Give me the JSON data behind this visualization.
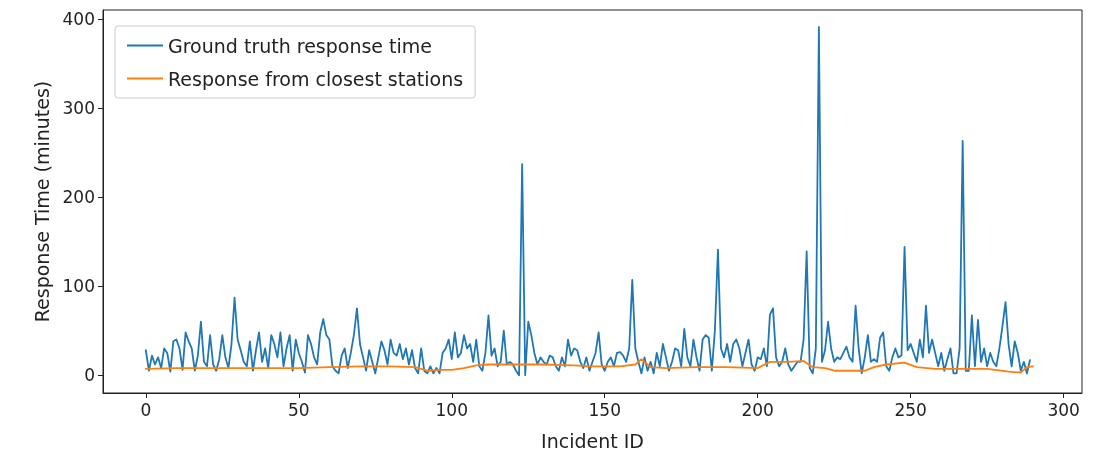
{
  "chart_data": {
    "type": "line",
    "xlabel": "Incident ID",
    "ylabel": "Response Time (minutes)",
    "xlim": [
      -14,
      306
    ],
    "xticks": [
      0,
      50,
      100,
      150,
      200,
      250,
      300
    ],
    "ylim": [
      -20,
      410
    ],
    "yticks": [
      0,
      100,
      200,
      300,
      400
    ],
    "grid": false,
    "legend": "top left",
    "marker": "none",
    "line_style": "solid",
    "series": [
      {
        "name": "Ground truth response time",
        "color": "#1f77b4",
        "x": [
          0,
          1,
          2,
          3,
          4,
          5,
          6,
          7,
          8,
          9,
          10,
          11,
          12,
          13,
          14,
          15,
          16,
          17,
          18,
          19,
          20,
          21,
          22,
          23,
          24,
          25,
          26,
          27,
          28,
          29,
          30,
          31,
          32,
          33,
          34,
          35,
          36,
          37,
          38,
          39,
          40,
          41,
          42,
          43,
          44,
          45,
          46,
          47,
          48,
          49,
          50,
          51,
          52,
          53,
          54,
          55,
          56,
          57,
          58,
          59,
          60,
          61,
          62,
          63,
          64,
          65,
          66,
          67,
          68,
          69,
          70,
          71,
          72,
          73,
          74,
          75,
          76,
          77,
          78,
          79,
          80,
          81,
          82,
          83,
          84,
          85,
          86,
          87,
          88,
          89,
          90,
          91,
          92,
          93,
          94,
          95,
          96,
          97,
          98,
          99,
          100,
          101,
          102,
          103,
          104,
          105,
          106,
          107,
          108,
          109,
          110,
          111,
          112,
          113,
          114,
          115,
          116,
          117,
          118,
          119,
          120,
          121,
          122,
          123,
          124,
          125,
          126,
          127,
          128,
          129,
          130,
          131,
          132,
          133,
          134,
          135,
          136,
          137,
          138,
          139,
          140,
          141,
          142,
          143,
          144,
          145,
          146,
          147,
          148,
          149,
          150,
          151,
          152,
          153,
          154,
          155,
          156,
          157,
          158,
          159,
          160,
          161,
          162,
          163,
          164,
          165,
          166,
          167,
          168,
          169,
          170,
          171,
          172,
          173,
          174,
          175,
          176,
          177,
          178,
          179,
          180,
          181,
          182,
          183,
          184,
          185,
          186,
          187,
          188,
          189,
          190,
          191,
          192,
          193,
          194,
          195,
          196,
          197,
          198,
          199,
          200,
          201,
          202,
          203,
          204,
          205,
          206,
          207,
          208,
          209,
          210,
          211,
          212,
          213,
          214,
          215,
          216,
          217,
          218,
          219,
          220,
          221,
          222,
          223,
          224,
          225,
          226,
          227,
          228,
          229,
          230,
          231,
          232,
          233,
          234,
          235,
          236,
          237,
          238,
          239,
          240,
          241,
          242,
          243,
          244,
          245,
          246,
          247,
          248,
          249,
          250,
          251,
          252,
          253,
          254,
          255,
          256,
          257,
          258,
          259,
          260,
          261,
          262,
          263,
          264,
          265,
          266,
          267,
          268,
          269,
          270,
          271,
          272,
          273,
          274,
          275,
          276,
          277,
          278,
          279,
          280,
          281,
          282,
          283,
          284,
          285,
          286,
          287,
          288,
          289
        ],
        "values": [
          28,
          5,
          22,
          12,
          20,
          8,
          30,
          25,
          4,
          38,
          40,
          30,
          6,
          48,
          38,
          30,
          5,
          22,
          60,
          15,
          10,
          45,
          12,
          5,
          18,
          45,
          20,
          8,
          35,
          87,
          40,
          28,
          15,
          10,
          38,
          5,
          28,
          48,
          15,
          30,
          8,
          45,
          35,
          20,
          48,
          10,
          30,
          45,
          5,
          40,
          25,
          15,
          3,
          45,
          35,
          20,
          12,
          48,
          63,
          45,
          40,
          10,
          5,
          2,
          22,
          30,
          8,
          25,
          45,
          75,
          35,
          20,
          5,
          28,
          15,
          2,
          20,
          38,
          28,
          12,
          40,
          25,
          22,
          35,
          18,
          30,
          12,
          28,
          8,
          2,
          30,
          5,
          2,
          10,
          2,
          8,
          2,
          25,
          30,
          40,
          18,
          48,
          20,
          25,
          45,
          30,
          35,
          15,
          40,
          10,
          5,
          25,
          67,
          22,
          30,
          10,
          15,
          50,
          12,
          15,
          12,
          5,
          0,
          237,
          0,
          60,
          45,
          25,
          12,
          20,
          15,
          12,
          22,
          20,
          10,
          5,
          20,
          10,
          40,
          22,
          30,
          28,
          15,
          8,
          20,
          5,
          15,
          25,
          48,
          12,
          5,
          15,
          20,
          10,
          25,
          26,
          22,
          15,
          30,
          107,
          30,
          15,
          2,
          20,
          5,
          15,
          2,
          25,
          10,
          35,
          20,
          5,
          15,
          30,
          28,
          10,
          52,
          20,
          10,
          40,
          20,
          5,
          40,
          45,
          42,
          5,
          50,
          141,
          30,
          20,
          35,
          15,
          35,
          40,
          30,
          10,
          25,
          40,
          12,
          5,
          20,
          18,
          30,
          10,
          68,
          75,
          20,
          10,
          15,
          30,
          12,
          5,
          10,
          15,
          15,
          40,
          139,
          8,
          2,
          30,
          391,
          15,
          28,
          60,
          30,
          15,
          20,
          18,
          25,
          32,
          20,
          15,
          78,
          30,
          2,
          20,
          45,
          15,
          18,
          15,
          42,
          48,
          10,
          5,
          20,
          30,
          20,
          22,
          144,
          28,
          35,
          25,
          15,
          40,
          20,
          78,
          25,
          40,
          25,
          10,
          25,
          5,
          18,
          30,
          2,
          2,
          30,
          263,
          5,
          5,
          67,
          10,
          62,
          15,
          30,
          10,
          25,
          15,
          10,
          30,
          55,
          82,
          35,
          10,
          38,
          25,
          5,
          15,
          2,
          17
        ]
      },
      {
        "name": "Response from closest stations",
        "color": "#ff7f0e",
        "x": [
          0,
          10,
          20,
          40,
          50,
          60,
          70,
          80,
          88,
          92,
          96,
          100,
          104,
          108,
          112,
          120,
          130,
          140,
          145,
          150,
          155,
          160,
          162,
          165,
          170,
          180,
          190,
          200,
          204,
          210,
          215,
          218,
          222,
          225,
          235,
          238,
          242,
          248,
          252,
          258,
          265,
          275,
          282,
          286,
          288,
          290
        ],
        "values": [
          7,
          8,
          8,
          8,
          8,
          9,
          10,
          10,
          9,
          5,
          6,
          6,
          8,
          11,
          12,
          12,
          12,
          11,
          10,
          10,
          10,
          12,
          18,
          9,
          8,
          9,
          9,
          8,
          15,
          15,
          16,
          9,
          8,
          5,
          5,
          9,
          12,
          14,
          9,
          7,
          7,
          7,
          4,
          3,
          9,
          10
        ]
      }
    ]
  }
}
